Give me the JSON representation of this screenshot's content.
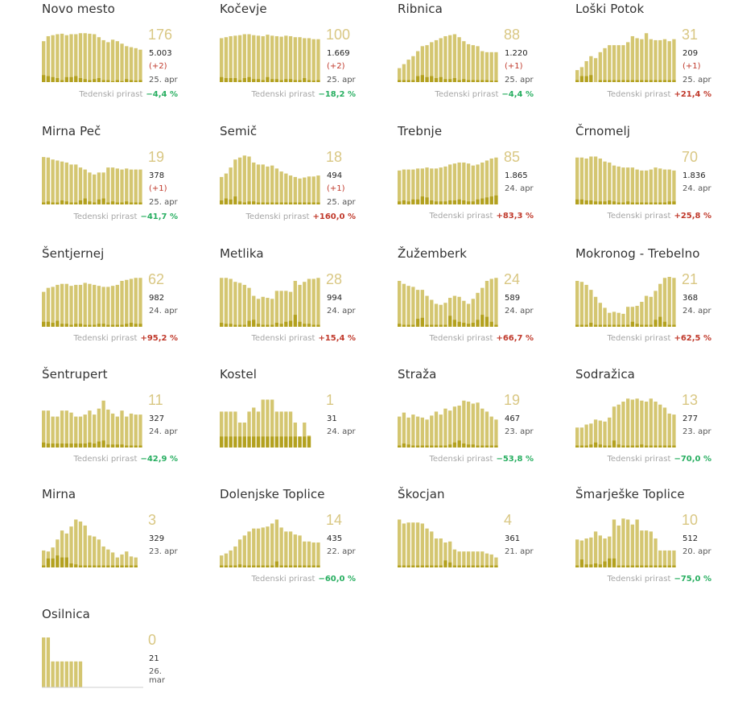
{
  "colors": {
    "bar": "#d4c671",
    "bar_dark": "#b3a11f",
    "active_number": "#d9c783",
    "positive": "#c0392b",
    "negative": "#27ae60"
  },
  "weekly_label": "Tedenski prirast",
  "chart_data": [
    {
      "type": "bar",
      "title": "Novo mesto",
      "active": "176",
      "total": "5.003",
      "delta": "(+2)",
      "date": "25. apr",
      "weekly": "−4,4 %",
      "trend": "neg",
      "values": [
        0.82,
        0.92,
        0.94,
        0.96,
        0.97,
        0.94,
        0.96,
        0.96,
        0.98,
        0.98,
        0.97,
        0.96,
        0.9,
        0.84,
        0.8,
        0.85,
        0.82,
        0.77,
        0.72,
        0.7,
        0.68,
        0.65
      ],
      "dark": [
        0.14,
        0.12,
        0.1,
        0.08,
        0.04,
        0.1,
        0.1,
        0.12,
        0.08,
        0.06,
        0.04,
        0.06,
        0.08,
        0.04,
        0.04,
        0.02,
        0.04,
        0.02,
        0.06,
        0.04,
        0.03,
        0.04
      ]
    },
    {
      "type": "bar",
      "title": "Kočevje",
      "active": "100",
      "total": "1.669",
      "delta": "(+2)",
      "date": "25. apr",
      "weekly": "−18,2 %",
      "trend": "neg",
      "values": [
        0.88,
        0.9,
        0.92,
        0.93,
        0.94,
        0.96,
        0.96,
        0.94,
        0.93,
        0.92,
        0.95,
        0.93,
        0.92,
        0.91,
        0.93,
        0.92,
        0.9,
        0.9,
        0.88,
        0.88,
        0.86,
        0.86
      ],
      "dark": [
        0.1,
        0.08,
        0.08,
        0.08,
        0.04,
        0.08,
        0.1,
        0.06,
        0.06,
        0.04,
        0.1,
        0.06,
        0.06,
        0.04,
        0.06,
        0.06,
        0.04,
        0.04,
        0.08,
        0.04,
        0.03,
        0.04
      ]
    },
    {
      "type": "bar",
      "title": "Ribnica",
      "active": "88",
      "total": "1.220",
      "delta": "(+1)",
      "date": "25. apr",
      "weekly": "−4,4 %",
      "trend": "neg",
      "values": [
        0.28,
        0.36,
        0.45,
        0.52,
        0.62,
        0.72,
        0.74,
        0.8,
        0.84,
        0.88,
        0.92,
        0.94,
        0.96,
        0.9,
        0.82,
        0.76,
        0.74,
        0.72,
        0.62,
        0.6,
        0.6,
        0.6
      ],
      "dark": [
        0.04,
        0.04,
        0.04,
        0.04,
        0.12,
        0.14,
        0.1,
        0.12,
        0.08,
        0.1,
        0.06,
        0.06,
        0.08,
        0.04,
        0.06,
        0.04,
        0.04,
        0.04,
        0.04,
        0.04,
        0.03,
        0.03
      ]
    },
    {
      "type": "bar",
      "title": "Loški Potok",
      "active": "31",
      "total": "209",
      "delta": "(+1)",
      "date": "25. apr",
      "weekly": "+21,4 %",
      "trend": "pos",
      "values": [
        0.24,
        0.3,
        0.42,
        0.52,
        0.48,
        0.6,
        0.68,
        0.74,
        0.74,
        0.74,
        0.74,
        0.8,
        0.92,
        0.88,
        0.86,
        0.98,
        0.86,
        0.84,
        0.84,
        0.86,
        0.82,
        0.86
      ],
      "dark": [
        0.04,
        0.12,
        0.12,
        0.14,
        0,
        0.04,
        0.04,
        0.04,
        0.04,
        0.04,
        0.04,
        0.04,
        0.04,
        0.04,
        0.04,
        0.04,
        0.04,
        0.04,
        0.04,
        0.04,
        0.04,
        0.04
      ]
    },
    {
      "type": "bar",
      "title": "Mirna Peč",
      "active": "19",
      "total": "378",
      "delta": "(+1)",
      "date": "25. apr",
      "weekly": "−41,7 %",
      "trend": "neg",
      "values": [
        0.95,
        0.94,
        0.9,
        0.88,
        0.86,
        0.84,
        0.8,
        0.8,
        0.74,
        0.7,
        0.64,
        0.6,
        0.64,
        0.64,
        0.74,
        0.74,
        0.72,
        0.7,
        0.72,
        0.7,
        0.7,
        0.7
      ],
      "dark": [
        0.04,
        0.06,
        0.04,
        0.04,
        0.08,
        0.06,
        0.04,
        0.04,
        0.08,
        0.12,
        0.06,
        0.04,
        0.1,
        0.12,
        0.04,
        0.06,
        0.04,
        0.04,
        0.06,
        0.04,
        0.04,
        0.04
      ]
    },
    {
      "type": "bar",
      "title": "Semič",
      "active": "18",
      "total": "494",
      "delta": "(+1)",
      "date": "25. apr",
      "weekly": "+160,0 %",
      "trend": "pos",
      "values": [
        0.55,
        0.62,
        0.74,
        0.9,
        0.94,
        0.98,
        0.96,
        0.84,
        0.8,
        0.8,
        0.76,
        0.78,
        0.72,
        0.66,
        0.62,
        0.58,
        0.55,
        0.52,
        0.54,
        0.56,
        0.56,
        0.58
      ],
      "dark": [
        0.08,
        0.12,
        0.1,
        0.16,
        0.06,
        0.04,
        0.06,
        0.06,
        0.04,
        0.04,
        0.04,
        0.04,
        0.04,
        0.04,
        0.04,
        0.04,
        0.04,
        0.04,
        0.04,
        0.04,
        0.04,
        0.04
      ]
    },
    {
      "type": "bar",
      "title": "Trebnje",
      "active": "85",
      "total": "1.865",
      "delta": "",
      "date": "24. apr",
      "weekly": "+83,3 %",
      "trend": "pos",
      "values": [
        0.68,
        0.7,
        0.7,
        0.7,
        0.72,
        0.72,
        0.74,
        0.72,
        0.72,
        0.74,
        0.76,
        0.8,
        0.82,
        0.84,
        0.84,
        0.82,
        0.78,
        0.8,
        0.84,
        0.88,
        0.92,
        0.94
      ],
      "dark": [
        0.06,
        0.08,
        0.06,
        0.1,
        0.1,
        0.16,
        0.14,
        0.08,
        0.06,
        0.06,
        0.06,
        0.08,
        0.08,
        0.1,
        0.08,
        0.06,
        0.06,
        0.1,
        0.12,
        0.14,
        0.16,
        0.18
      ]
    },
    {
      "type": "bar",
      "title": "Črnomelj",
      "active": "70",
      "total": "1.836",
      "delta": "",
      "date": "24. apr",
      "weekly": "+25,8 %",
      "trend": "pos",
      "values": [
        0.94,
        0.94,
        0.92,
        0.96,
        0.96,
        0.92,
        0.86,
        0.84,
        0.78,
        0.76,
        0.74,
        0.74,
        0.74,
        0.7,
        0.68,
        0.68,
        0.7,
        0.74,
        0.72,
        0.7,
        0.7,
        0.68
      ],
      "dark": [
        0.1,
        0.1,
        0.08,
        0.08,
        0.06,
        0.06,
        0.06,
        0.08,
        0.06,
        0.04,
        0.04,
        0.06,
        0.04,
        0.04,
        0.04,
        0.04,
        0.04,
        0.04,
        0.04,
        0.04,
        0.06,
        0.06
      ]
    },
    {
      "type": "bar",
      "title": "Šentjernej",
      "active": "62",
      "total": "982",
      "delta": "",
      "date": "24. apr",
      "weekly": "+95,2 %",
      "trend": "pos",
      "values": [
        0.7,
        0.78,
        0.8,
        0.84,
        0.86,
        0.86,
        0.82,
        0.84,
        0.84,
        0.88,
        0.86,
        0.84,
        0.82,
        0.8,
        0.8,
        0.82,
        0.84,
        0.92,
        0.94,
        0.96,
        0.98,
        0.98
      ],
      "dark": [
        0.1,
        0.1,
        0.08,
        0.12,
        0.06,
        0.06,
        0.04,
        0.06,
        0.06,
        0.04,
        0.04,
        0.04,
        0.06,
        0.06,
        0.04,
        0.04,
        0.04,
        0.04,
        0.06,
        0.08,
        0.06,
        0.06
      ]
    },
    {
      "type": "bar",
      "title": "Metlika",
      "active": "28",
      "total": "994",
      "delta": "",
      "date": "24. apr",
      "weekly": "+15,4 %",
      "trend": "pos",
      "values": [
        0.98,
        0.98,
        0.96,
        0.9,
        0.88,
        0.84,
        0.78,
        0.62,
        0.56,
        0.6,
        0.58,
        0.56,
        0.72,
        0.72,
        0.72,
        0.7,
        0.92,
        0.84,
        0.9,
        0.96,
        0.96,
        0.98
      ],
      "dark": [
        0.08,
        0.06,
        0.06,
        0.04,
        0.04,
        0.04,
        0.12,
        0.14,
        0.06,
        0.04,
        0.04,
        0.04,
        0.08,
        0.06,
        0.1,
        0.12,
        0.24,
        0.1,
        0.06,
        0.06,
        0.04,
        0.04
      ]
    },
    {
      "type": "bar",
      "title": "Žužemberk",
      "active": "24",
      "total": "589",
      "delta": "",
      "date": "24. apr",
      "weekly": "+66,7 %",
      "trend": "pos",
      "values": [
        0.92,
        0.86,
        0.82,
        0.8,
        0.74,
        0.74,
        0.62,
        0.54,
        0.46,
        0.44,
        0.48,
        0.58,
        0.62,
        0.6,
        0.52,
        0.46,
        0.56,
        0.68,
        0.78,
        0.92,
        0.96,
        0.98
      ],
      "dark": [
        0.06,
        0.04,
        0.04,
        0.04,
        0.16,
        0.18,
        0.04,
        0.04,
        0.04,
        0.04,
        0.04,
        0.22,
        0.14,
        0.1,
        0.08,
        0.06,
        0.08,
        0.14,
        0.24,
        0.2,
        0.1,
        0.04
      ]
    },
    {
      "type": "bar",
      "title": "Mokronog - Trebelno",
      "active": "21",
      "total": "368",
      "delta": "",
      "date": "24. apr",
      "weekly": "+62,5 %",
      "trend": "pos",
      "values": [
        0.92,
        0.9,
        0.84,
        0.74,
        0.6,
        0.48,
        0.38,
        0.28,
        0.3,
        0.28,
        0.26,
        0.4,
        0.4,
        0.42,
        0.5,
        0.62,
        0.6,
        0.72,
        0.86,
        0.98,
        1.0,
        0.98
      ],
      "dark": [
        0.04,
        0.04,
        0.04,
        0.08,
        0.04,
        0.04,
        0.04,
        0.04,
        0.04,
        0.04,
        0.04,
        0.04,
        0.1,
        0.06,
        0.04,
        0.04,
        0.04,
        0.14,
        0.2,
        0.1,
        0.04,
        0.04
      ]
    },
    {
      "type": "bar",
      "title": "Šentrupert",
      "active": "11",
      "total": "327",
      "delta": "",
      "date": "24. apr",
      "weekly": "−42,9 %",
      "trend": "neg",
      "values": [
        0.74,
        0.74,
        0.62,
        0.62,
        0.74,
        0.74,
        0.7,
        0.62,
        0.62,
        0.66,
        0.74,
        0.66,
        0.78,
        0.94,
        0.76,
        0.68,
        0.62,
        0.74,
        0.62,
        0.68,
        0.66,
        0.66
      ],
      "dark": [
        0.1,
        0.08,
        0.08,
        0.08,
        0.08,
        0.08,
        0.08,
        0.08,
        0.08,
        0.08,
        0.1,
        0.08,
        0.12,
        0.14,
        0.06,
        0.06,
        0.06,
        0.06,
        0.04,
        0.04,
        0.04,
        0.04
      ]
    },
    {
      "type": "bar",
      "title": "Kostel",
      "active": "1",
      "total": "31",
      "delta": "",
      "date": "24. apr",
      "weekly": "",
      "trend": "",
      "values": [
        0.72,
        0.72,
        0.72,
        0.72,
        0.5,
        0.5,
        0.72,
        0.8,
        0.72,
        0.96,
        0.96,
        0.96,
        0.72,
        0.72,
        0.72,
        0.72,
        0.5,
        0.22,
        0.5,
        0.24
      ],
      "dark": [
        0.22,
        0.22,
        0.22,
        0.22,
        0.22,
        0.22,
        0.22,
        0.22,
        0.22,
        0.22,
        0.22,
        0.22,
        0.22,
        0.22,
        0.22,
        0.22,
        0.22,
        0.22,
        0.22,
        0.22
      ]
    },
    {
      "type": "bar",
      "title": "Straža",
      "active": "19",
      "total": "467",
      "delta": "",
      "date": "23. apr",
      "weekly": "−53,8 %",
      "trend": "neg",
      "values": [
        0.62,
        0.7,
        0.6,
        0.66,
        0.62,
        0.6,
        0.56,
        0.64,
        0.72,
        0.66,
        0.78,
        0.74,
        0.82,
        0.84,
        0.94,
        0.92,
        0.88,
        0.9,
        0.78,
        0.72,
        0.62,
        0.56
      ],
      "dark": [
        0.04,
        0.08,
        0.06,
        0.04,
        0.04,
        0.04,
        0.04,
        0.04,
        0.04,
        0.04,
        0.04,
        0.06,
        0.1,
        0.14,
        0.08,
        0.06,
        0.06,
        0.04,
        0.04,
        0.04,
        0.04,
        0.04
      ]
    },
    {
      "type": "bar",
      "title": "Sodražica",
      "active": "13",
      "total": "277",
      "delta": "",
      "date": "23. apr",
      "weekly": "−70,0 %",
      "trend": "neg",
      "values": [
        0.4,
        0.4,
        0.46,
        0.48,
        0.56,
        0.54,
        0.52,
        0.6,
        0.82,
        0.86,
        0.92,
        0.98,
        0.96,
        0.98,
        0.94,
        0.92,
        0.98,
        0.92,
        0.86,
        0.8,
        0.68,
        0.66
      ],
      "dark": [
        0.04,
        0.04,
        0.04,
        0.06,
        0.1,
        0.06,
        0.04,
        0.04,
        0.14,
        0.06,
        0.04,
        0.04,
        0.04,
        0.04,
        0.06,
        0.04,
        0.04,
        0.04,
        0.04,
        0.04,
        0.04,
        0.04
      ]
    },
    {
      "type": "bar",
      "title": "Mirna",
      "active": "3",
      "total": "329",
      "delta": "",
      "date": "23. apr",
      "weekly": "",
      "trend": "",
      "values": [
        0.34,
        0.32,
        0.4,
        0.56,
        0.74,
        0.68,
        0.82,
        0.96,
        0.92,
        0.84,
        0.64,
        0.62,
        0.56,
        0.42,
        0.36,
        0.3,
        0.2,
        0.26,
        0.32,
        0.22,
        0.2
      ],
      "dark": [
        0.04,
        0.18,
        0.18,
        0.24,
        0.2,
        0.2,
        0.08,
        0.06,
        0.04,
        0.04,
        0.04,
        0.04,
        0.04,
        0.04,
        0.04,
        0.04,
        0.04,
        0.04,
        0.04,
        0.04,
        0.04
      ]
    },
    {
      "type": "bar",
      "title": "Dolenjske Toplice",
      "active": "14",
      "total": "435",
      "delta": "",
      "date": "22. apr",
      "weekly": "−60,0 %",
      "trend": "neg",
      "values": [
        0.24,
        0.28,
        0.34,
        0.42,
        0.56,
        0.64,
        0.72,
        0.78,
        0.78,
        0.8,
        0.82,
        0.88,
        0.96,
        0.8,
        0.72,
        0.72,
        0.66,
        0.64,
        0.52,
        0.52,
        0.5,
        0.5
      ],
      "dark": [
        0.04,
        0.04,
        0.04,
        0.04,
        0.06,
        0.04,
        0.04,
        0.04,
        0.04,
        0.04,
        0.04,
        0.04,
        0.12,
        0.04,
        0.04,
        0.04,
        0.04,
        0.04,
        0.04,
        0.04,
        0.04,
        0.04
      ]
    },
    {
      "type": "bar",
      "title": "Škocjan",
      "active": "4",
      "total": "361",
      "delta": "",
      "date": "21. apr",
      "weekly": "",
      "trend": "",
      "values": [
        0.96,
        0.88,
        0.9,
        0.9,
        0.9,
        0.88,
        0.78,
        0.72,
        0.58,
        0.58,
        0.5,
        0.52,
        0.36,
        0.32,
        0.32,
        0.32,
        0.32,
        0.32,
        0.32,
        0.28,
        0.26,
        0.2
      ],
      "dark": [
        0.04,
        0.04,
        0.04,
        0.04,
        0.04,
        0.04,
        0.04,
        0.04,
        0.04,
        0.04,
        0.14,
        0.1,
        0.04,
        0.04,
        0.04,
        0.04,
        0.04,
        0.04,
        0.04,
        0.04,
        0.04,
        0.04
      ]
    },
    {
      "type": "bar",
      "title": "Šmarješke Toplice",
      "active": "10",
      "total": "512",
      "delta": "",
      "date": "20. apr",
      "weekly": "−75,0 %",
      "trend": "neg",
      "values": [
        0.56,
        0.54,
        0.58,
        0.6,
        0.72,
        0.64,
        0.58,
        0.62,
        0.96,
        0.84,
        0.98,
        0.96,
        0.86,
        0.96,
        0.74,
        0.74,
        0.72,
        0.58,
        0.34,
        0.34,
        0.34,
        0.34
      ],
      "dark": [
        0.04,
        0.16,
        0.06,
        0.06,
        0.08,
        0.06,
        0.12,
        0.18,
        0.18,
        0.04,
        0.04,
        0.04,
        0.04,
        0.04,
        0.04,
        0.04,
        0.04,
        0.04,
        0.04,
        0.04,
        0.04,
        0.04
      ]
    },
    {
      "type": "bar",
      "title": "Osilnica",
      "active": "0",
      "total": "21",
      "delta": "",
      "date": "26. mar",
      "weekly": "",
      "trend": "",
      "values": [
        1.0,
        1.0,
        0.52,
        0.52,
        0.52,
        0.52,
        0.52,
        0.52,
        0.52,
        0,
        0,
        0,
        0,
        0,
        0,
        0,
        0,
        0,
        0,
        0,
        0,
        0
      ],
      "dark": [
        0,
        0,
        0,
        0,
        0,
        0,
        0,
        0,
        0,
        0,
        0,
        0,
        0,
        0,
        0,
        0,
        0,
        0,
        0,
        0,
        0,
        0
      ]
    }
  ]
}
